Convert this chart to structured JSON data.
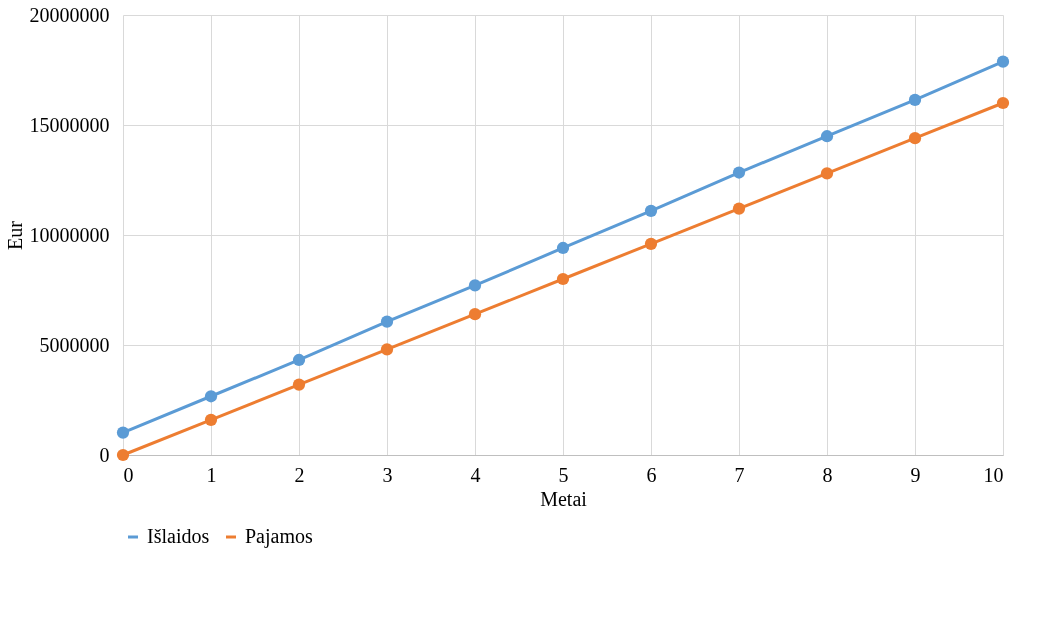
{
  "chart_data": {
    "type": "line",
    "xlabel": "Metai",
    "ylabel": "Eur",
    "x": [
      0,
      1,
      2,
      3,
      4,
      5,
      6,
      7,
      8,
      9,
      10
    ],
    "series": [
      {
        "name": "Išlaidos",
        "color": "#5b9bd5",
        "values": [
          1020000,
          2670000,
          4320000,
          6060000,
          7710000,
          9410000,
          11100000,
          12840000,
          14490000,
          16140000,
          17880000
        ]
      },
      {
        "name": "Pajamos",
        "color": "#ed7d31",
        "values": [
          0,
          1600000,
          3200000,
          4800000,
          6400000,
          8000000,
          9600000,
          11200000,
          12800000,
          14400000,
          16000000
        ]
      }
    ],
    "xlim": [
      0,
      10
    ],
    "xticks": [
      0,
      1,
      2,
      3,
      4,
      5,
      6,
      7,
      8,
      9,
      10
    ],
    "ylim": [
      0,
      20000000
    ],
    "yticks": [
      0,
      5000000,
      10000000,
      15000000,
      20000000
    ],
    "grid": true,
    "legend": "bottom",
    "marker": "circle",
    "line_style": "solid"
  }
}
